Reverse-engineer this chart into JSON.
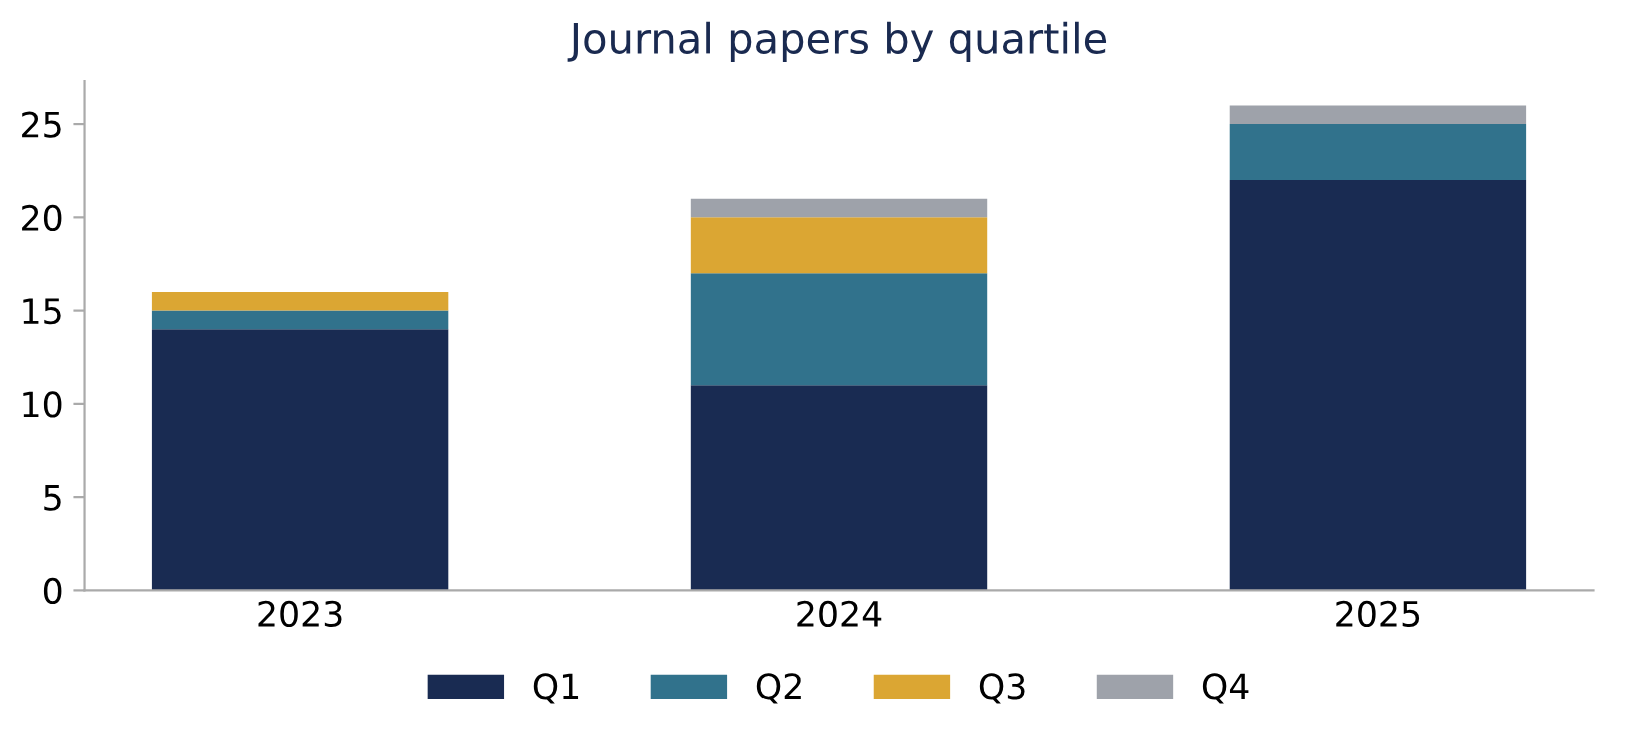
{
  "chart_data": {
    "type": "bar",
    "title": "Journal papers by quartile",
    "categories": [
      "2023",
      "2024",
      "2025"
    ],
    "stacked": true,
    "series": [
      {
        "name": "Q1",
        "color": "#192b52",
        "values": [
          14,
          11,
          22
        ]
      },
      {
        "name": "Q2",
        "color": "#31728c",
        "values": [
          1,
          6,
          3
        ]
      },
      {
        "name": "Q3",
        "color": "#dba633",
        "values": [
          1,
          3,
          0
        ]
      },
      {
        "name": "Q4",
        "color": "#9ea2aa",
        "values": [
          0,
          1,
          1
        ]
      }
    ],
    "ylim": [
      0,
      27.3
    ],
    "yticks": [
      0,
      5,
      10,
      15,
      20,
      25
    ],
    "grid": false,
    "legend": "bottom"
  }
}
